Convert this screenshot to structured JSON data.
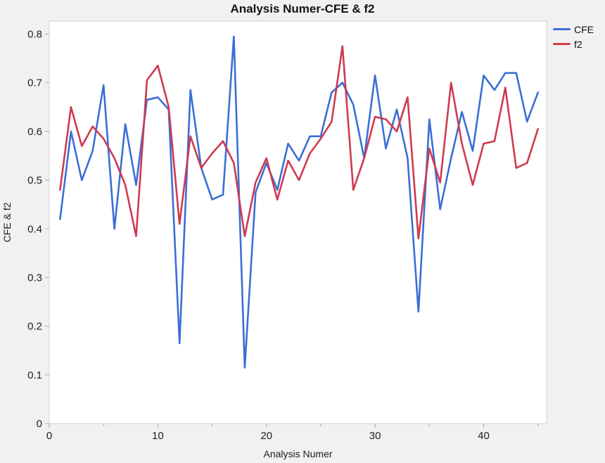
{
  "title": "Analysis Numer-CFE & f2",
  "x_axis_label": "Analysis Numer",
  "y_axis_label": "CFE & f2",
  "legend": [
    {
      "label": "CFE",
      "color": "#3b6ed6"
    },
    {
      "label": "f2",
      "color": "#ce3a50"
    }
  ],
  "colors": {
    "page_background": "#f1f1f2",
    "plot_background": "#ffffff",
    "plot_border": "#d2d2d2",
    "axis_line": "#ababab",
    "tick_label": "#1e1e1e",
    "series_cfe": "#3b6ed6",
    "series_f2": "#ce3a50"
  },
  "chart_data": {
    "type": "line",
    "title": "Analysis Numer-CFE & f2",
    "xlabel": "Analysis Numer",
    "ylabel": "CFE & f2",
    "grid": false,
    "legend_position": "top-right-outside",
    "xlim": [
      0,
      45.8
    ],
    "ylim": [
      0,
      0.8265
    ],
    "yticks": [
      0,
      0.1,
      0.2,
      0.3,
      0.4,
      0.5,
      0.6,
      0.7,
      0.8
    ],
    "xticks_major": [
      0,
      10,
      20,
      30,
      40
    ],
    "xticks_minor": [
      5,
      15,
      25,
      35,
      45
    ],
    "x": [
      1,
      2,
      3,
      4,
      5,
      6,
      7,
      8,
      9,
      10,
      11,
      12,
      13,
      14,
      15,
      16,
      17,
      18,
      19,
      20,
      21,
      22,
      23,
      24,
      25,
      26,
      27,
      28,
      29,
      30,
      31,
      32,
      33,
      34,
      35,
      36,
      37,
      38,
      39,
      40,
      41,
      42,
      43,
      44,
      45
    ],
    "series": [
      {
        "name": "CFE",
        "color": "#3b6ed6",
        "values": [
          0.42,
          0.6,
          0.5,
          0.56,
          0.695,
          0.4,
          0.615,
          0.49,
          0.665,
          0.67,
          0.645,
          0.165,
          0.685,
          0.525,
          0.46,
          0.47,
          0.795,
          0.115,
          0.475,
          0.535,
          0.48,
          0.575,
          0.54,
          0.59,
          0.59,
          0.68,
          0.7,
          0.655,
          0.545,
          0.715,
          0.565,
          0.645,
          0.545,
          0.23,
          0.625,
          0.44,
          0.545,
          0.64,
          0.56,
          0.715,
          0.685,
          0.72,
          0.72,
          0.62,
          0.68
        ]
      },
      {
        "name": "f2",
        "color": "#ce3a50",
        "values": [
          0.48,
          0.65,
          0.57,
          0.61,
          0.585,
          0.545,
          0.49,
          0.385,
          0.705,
          0.735,
          0.65,
          0.41,
          0.59,
          0.525,
          0.555,
          0.58,
          0.535,
          0.385,
          0.495,
          0.545,
          0.46,
          0.54,
          0.5,
          0.555,
          0.585,
          0.62,
          0.775,
          0.48,
          0.545,
          0.63,
          0.625,
          0.6,
          0.67,
          0.38,
          0.565,
          0.495,
          0.7,
          0.575,
          0.49,
          0.575,
          0.58,
          0.69,
          0.525,
          0.535,
          0.605
        ]
      }
    ]
  }
}
